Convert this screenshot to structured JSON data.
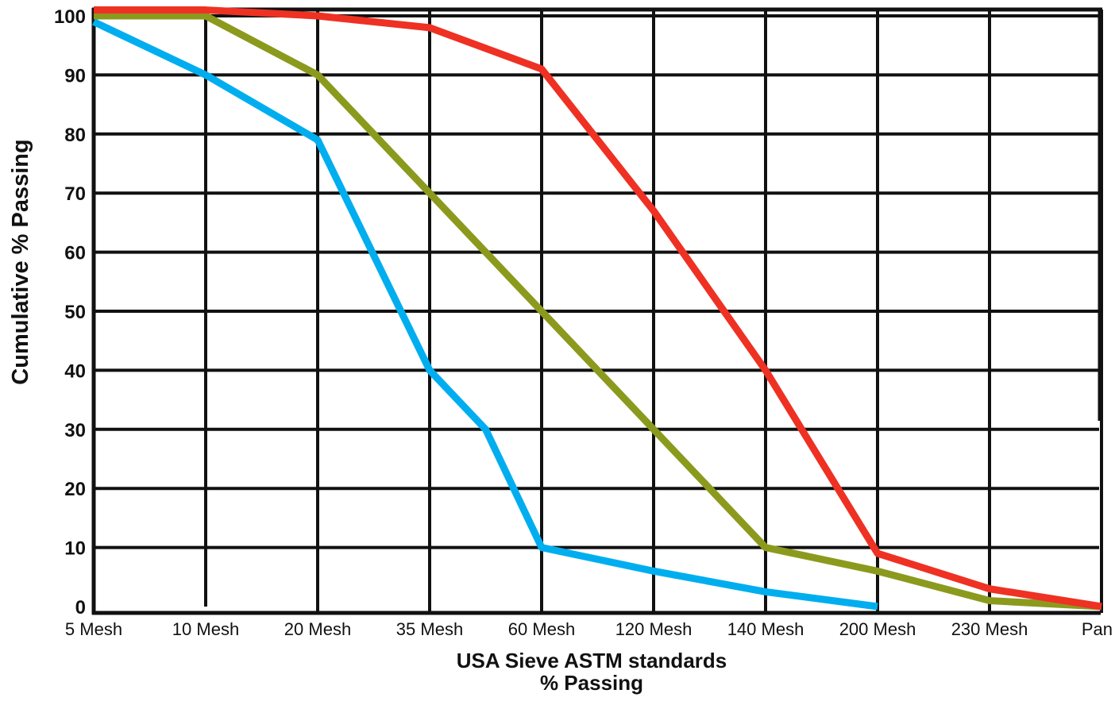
{
  "chart_data": {
    "type": "line",
    "categories": [
      "5 Mesh",
      "10 Mesh",
      "20 Mesh",
      "35 Mesh",
      "60 Mesh",
      "120 Mesh",
      "140 Mesh",
      "200 Mesh",
      "230 Mesh",
      "Pan"
    ],
    "xlabel": "USA Sieve ASTM standards",
    "xlabel_line2": "% Passing",
    "ylabel": "Cumulative % Passing",
    "ylim": [
      0,
      100
    ],
    "yticks": [
      0,
      10,
      20,
      30,
      40,
      50,
      60,
      70,
      80,
      90,
      100
    ],
    "grid": true,
    "series": [
      {
        "color": "#00aeef",
        "points": [
          [
            0,
            99
          ],
          [
            1,
            90
          ],
          [
            2,
            79
          ],
          [
            3,
            40
          ],
          [
            3.5,
            30
          ],
          [
            4,
            10
          ],
          [
            5,
            6
          ],
          [
            6,
            2.5
          ],
          [
            7,
            0
          ]
        ]
      },
      {
        "color": "#8b9a1d",
        "points": [
          [
            0,
            100
          ],
          [
            1,
            100
          ],
          [
            2,
            90
          ],
          [
            3,
            70
          ],
          [
            4,
            50
          ],
          [
            5,
            30
          ],
          [
            6,
            10
          ],
          [
            7,
            6
          ],
          [
            8,
            1
          ],
          [
            9,
            0
          ]
        ]
      },
      {
        "color": "#ee3123",
        "points": [
          [
            0,
            101
          ],
          [
            1,
            101
          ],
          [
            2,
            100
          ],
          [
            3,
            98
          ],
          [
            4,
            91
          ],
          [
            5,
            67
          ],
          [
            6,
            40
          ],
          [
            7,
            9
          ],
          [
            8,
            3
          ],
          [
            9,
            0
          ]
        ]
      }
    ]
  }
}
